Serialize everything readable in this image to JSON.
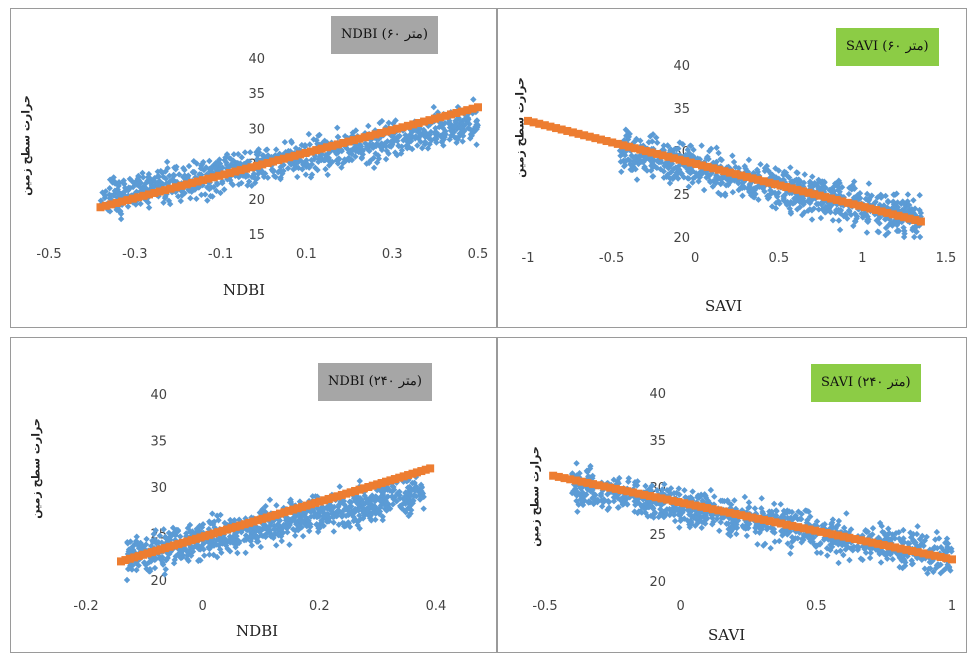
{
  "chart_data": [
    {
      "type": "scatter",
      "title": "NDBI (۶۰ متر)",
      "xlabel": "NDBI",
      "ylabel": "حرارت سطح زمین",
      "xlim": [
        -0.5,
        0.5
      ],
      "ylim": [
        15,
        40
      ],
      "xticks": [
        "-0.5",
        "-0.3",
        "-0.1",
        "0.1",
        "0.3",
        "0.5"
      ],
      "yticks": [
        "15",
        "20",
        "25",
        "30",
        "35",
        "40"
      ],
      "grid": false,
      "badge_color": "#a6a6a6",
      "series": [
        {
          "kind": "points",
          "color": "#5b9bd5",
          "x_range": [
            -0.38,
            0.5
          ],
          "y_center_at_xmin": 20,
          "y_center_at_xmax": 31,
          "spread": 4
        },
        {
          "kind": "trend",
          "color": "#ed7d31",
          "points": [
            [
              -0.38,
              18.8
            ],
            [
              0.5,
              33.0
            ]
          ]
        }
      ]
    },
    {
      "type": "scatter",
      "title": "SAVI (۶۰ متر)",
      "xlabel": "SAVI",
      "ylabel": "حرارت سطح زمین",
      "xlim": [
        -1,
        1.5
      ],
      "ylim": [
        20,
        40
      ],
      "xticks": [
        "-1",
        "-0.5",
        "0",
        "0.5",
        "1",
        "1.5"
      ],
      "yticks": [
        "20",
        "25",
        "30",
        "35",
        "40"
      ],
      "grid": false,
      "badge_color": "#8ccc45",
      "series": [
        {
          "kind": "points",
          "color": "#5b9bd5",
          "x_range": [
            -0.45,
            1.35
          ],
          "y_center_at_xmin": 30,
          "y_center_at_xmax": 22,
          "spread": 3.5
        },
        {
          "kind": "trend",
          "color": "#ed7d31",
          "points": [
            [
              -1.0,
              33.5
            ],
            [
              1.35,
              21.8
            ]
          ]
        }
      ]
    },
    {
      "type": "scatter",
      "title": "NDBI (۲۴۰ متر)",
      "xlabel": "NDBI",
      "ylabel": "حرارت سطح زمین",
      "xlim": [
        -0.2,
        0.4
      ],
      "ylim": [
        20,
        40
      ],
      "xticks": [
        "-0.2",
        "0",
        "0.2",
        "0.4"
      ],
      "yticks": [
        "20",
        "25",
        "30",
        "35",
        "40"
      ],
      "grid": false,
      "badge_color": "#a6a6a6",
      "series": [
        {
          "kind": "points",
          "color": "#5b9bd5",
          "x_range": [
            -0.13,
            0.38
          ],
          "y_center_at_xmin": 22.5,
          "y_center_at_xmax": 29.5,
          "spread": 3
        },
        {
          "kind": "trend",
          "color": "#ed7d31",
          "points": [
            [
              -0.14,
              22.0
            ],
            [
              0.39,
              32.0
            ]
          ]
        }
      ]
    },
    {
      "type": "scatter",
      "title": "SAVI (۲۴۰ متر)",
      "xlabel": "SAVI",
      "ylabel": "حرارت سطح زمین",
      "xlim": [
        -0.5,
        1
      ],
      "ylim": [
        20,
        40
      ],
      "xticks": [
        "-0.5",
        "0",
        "0.5",
        "1"
      ],
      "yticks": [
        "20",
        "25",
        "30",
        "35",
        "40"
      ],
      "grid": false,
      "badge_color": "#8ccc45",
      "series": [
        {
          "kind": "points",
          "color": "#5b9bd5",
          "x_range": [
            -0.4,
            1.0
          ],
          "y_center_at_xmin": 30,
          "y_center_at_xmax": 22.5,
          "spread": 3
        },
        {
          "kind": "trend",
          "color": "#ed7d31",
          "points": [
            [
              -0.47,
              31.2
            ],
            [
              1.0,
              22.3
            ]
          ]
        }
      ]
    }
  ]
}
